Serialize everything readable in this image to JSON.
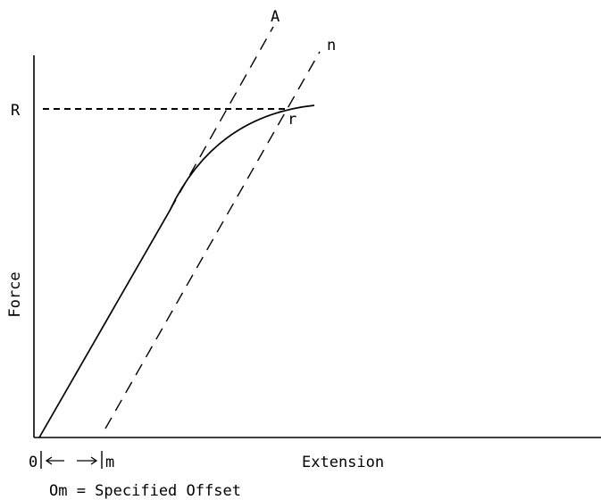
{
  "diagram": {
    "labels": {
      "point_r_axis": "R",
      "point_a": "A",
      "point_n": "n",
      "point_r_curve": "r",
      "origin": "0",
      "offset_m": "m",
      "y_axis": "Force",
      "x_axis": "Extension",
      "caption": "Om = Specified Offset"
    },
    "colors": {
      "ink": "#000000",
      "background": "#ffffff"
    }
  }
}
